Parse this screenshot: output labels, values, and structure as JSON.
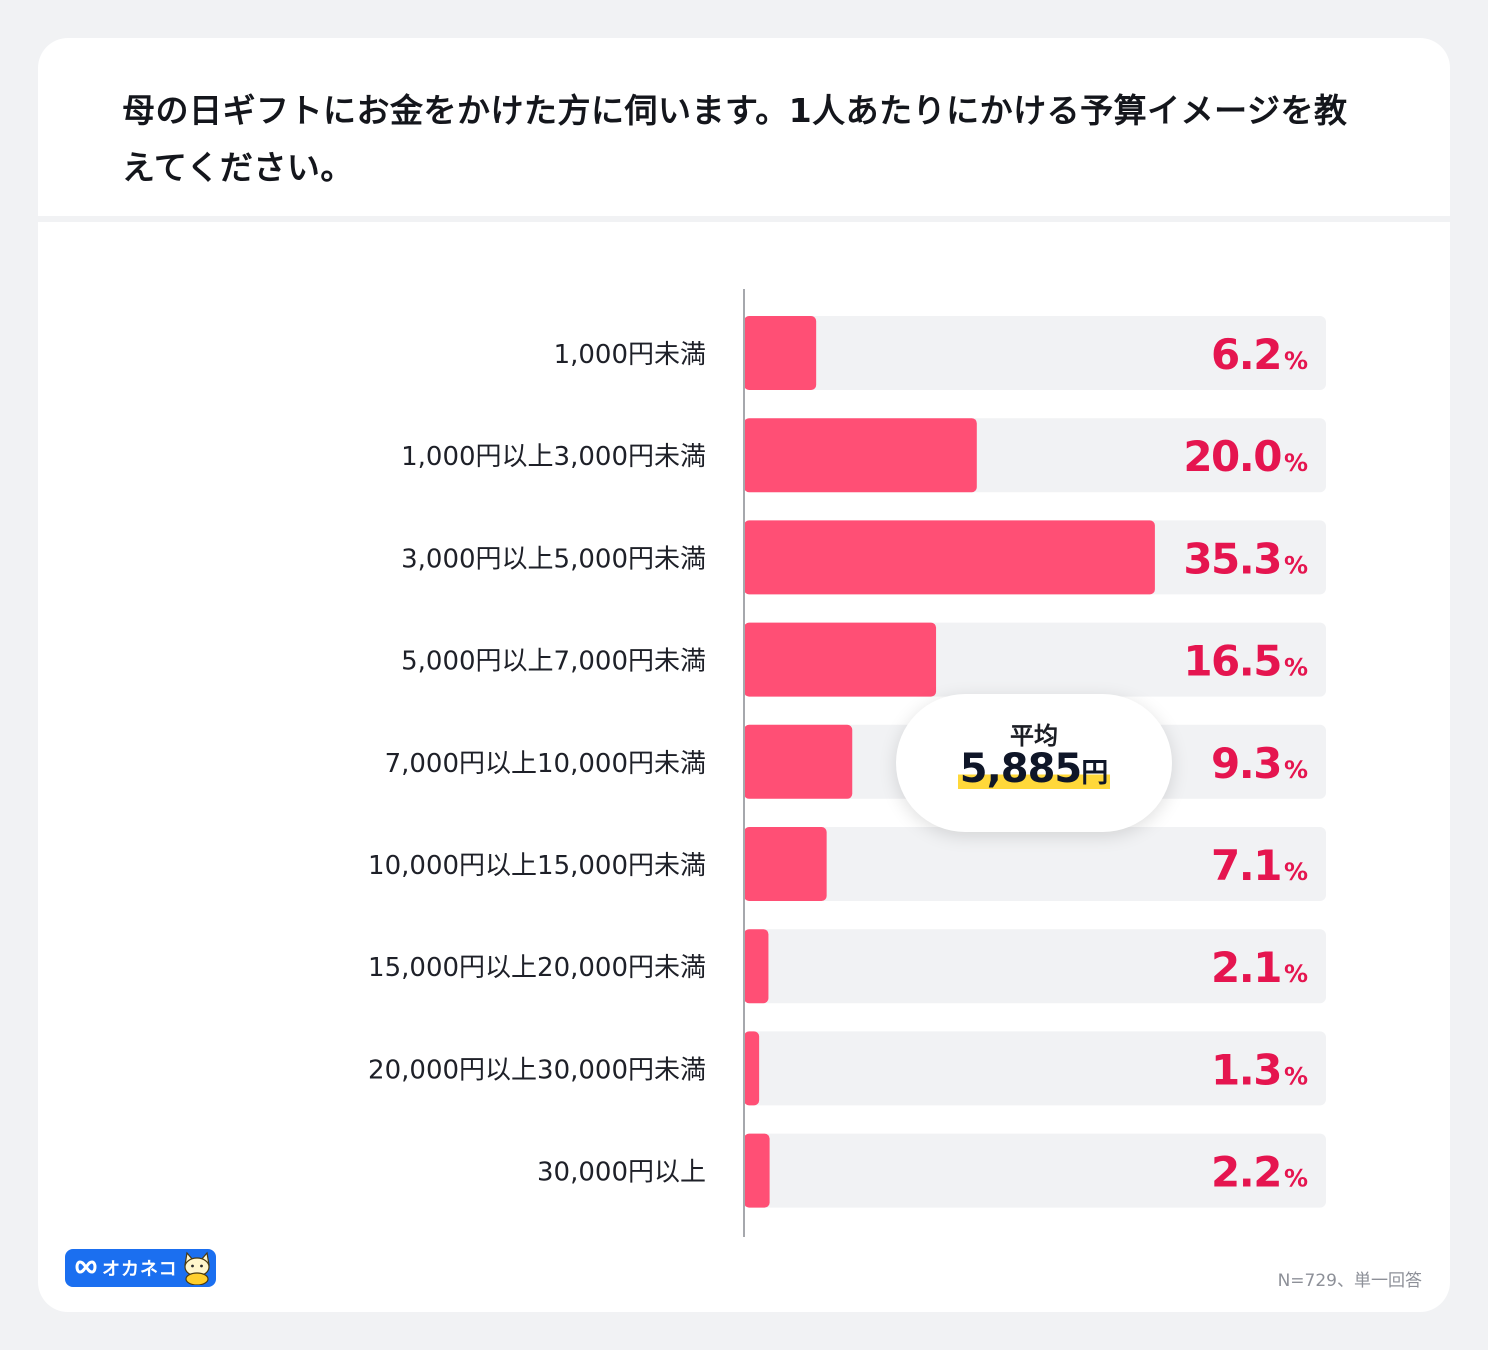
{
  "title": "母の日ギフトにお金をかけた方に伺います。1人あたりにかける予算イメージを教えてください。",
  "chart_data": {
    "type": "bar",
    "orientation": "horizontal",
    "categories": [
      "1,000円未満",
      "1,000円以上3,000円未満",
      "3,000円以上5,000円未満",
      "5,000円以上7,000円未満",
      "7,000円以上10,000円未満",
      "10,000円以上15,000円未満",
      "15,000円以上20,000円未満",
      "20,000円以上30,000円未満",
      "30,000円以上"
    ],
    "values": [
      6.2,
      20.0,
      35.3,
      16.5,
      9.3,
      7.1,
      2.1,
      1.3,
      2.2
    ],
    "value_labels": [
      "6.2",
      "20.0",
      "35.3",
      "16.5",
      "9.3",
      "7.1",
      "2.1",
      "1.3",
      "2.2"
    ],
    "unit": "%",
    "xlim": [
      0,
      50
    ],
    "bar_color": "#ff4f75",
    "track_color": "#f1f2f4",
    "label_color": "#e5154f"
  },
  "average": {
    "label": "平均",
    "value": "5,885",
    "unit": "円"
  },
  "logo": {
    "text": "オカネコ"
  },
  "footnote": "N=729、単一回答"
}
